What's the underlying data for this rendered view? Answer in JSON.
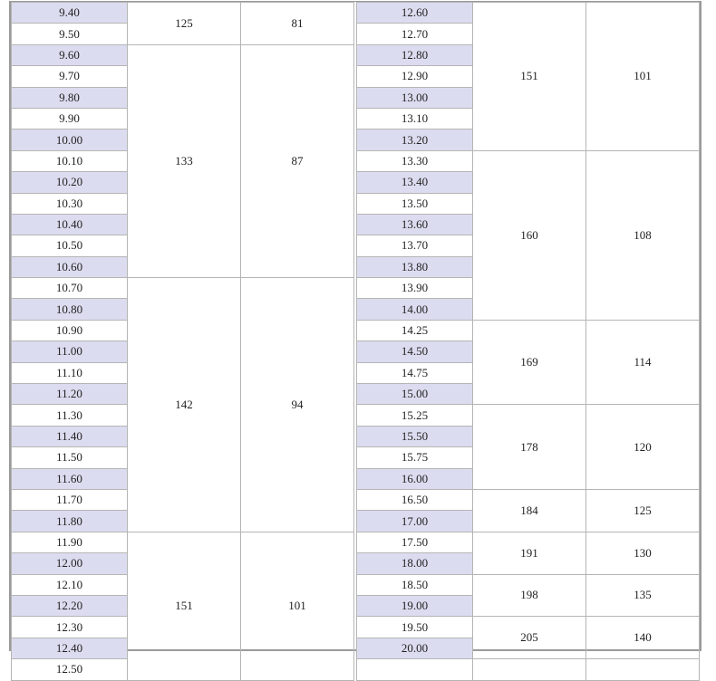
{
  "colors": {
    "shaded_row": "#dcdcf0",
    "border": "#b5b5b5"
  },
  "left_table": {
    "sizes": [
      "9.40",
      "9.50",
      "9.60",
      "9.70",
      "9.80",
      "9.90",
      "10.00",
      "10.10",
      "10.20",
      "10.30",
      "10.40",
      "10.50",
      "10.60",
      "10.70",
      "10.80",
      "10.90",
      "11.00",
      "11.10",
      "11.20",
      "11.30",
      "11.40",
      "11.50",
      "11.60",
      "11.70",
      "11.80",
      "11.90",
      "12.00",
      "12.10",
      "12.20",
      "12.30",
      "12.40",
      "12.50"
    ],
    "groups": [
      {
        "rows": 2,
        "col2": "125",
        "col3": "81"
      },
      {
        "rows": 11,
        "col2": "133",
        "col3": "87"
      },
      {
        "rows": 12,
        "col2": "142",
        "col3": "94"
      },
      {
        "rows": 7,
        "col2": "151",
        "col3": "101"
      }
    ]
  },
  "right_table": {
    "sizes": [
      "12.60",
      "12.70",
      "12.80",
      "12.90",
      "13.00",
      "13.10",
      "13.20",
      "13.30",
      "13.40",
      "13.50",
      "13.60",
      "13.70",
      "13.80",
      "13.90",
      "14.00",
      "14.25",
      "14.50",
      "14.75",
      "15.00",
      "15.25",
      "15.50",
      "15.75",
      "16.00",
      "16.50",
      "17.00",
      "17.50",
      "18.00",
      "18.50",
      "19.00",
      "19.50",
      "20.00",
      ""
    ],
    "groups": [
      {
        "rows": 7,
        "col2": "151",
        "col3": "101"
      },
      {
        "rows": 8,
        "col2": "160",
        "col3": "108"
      },
      {
        "rows": 4,
        "col2": "169",
        "col3": "114"
      },
      {
        "rows": 4,
        "col2": "178",
        "col3": "120"
      },
      {
        "rows": 2,
        "col2": "184",
        "col3": "125"
      },
      {
        "rows": 2,
        "col2": "191",
        "col3": "130"
      },
      {
        "rows": 2,
        "col2": "198",
        "col3": "135"
      },
      {
        "rows": 2,
        "col2": "205",
        "col3": "140"
      },
      {
        "rows": 1,
        "col2": "",
        "col3": ""
      }
    ]
  }
}
